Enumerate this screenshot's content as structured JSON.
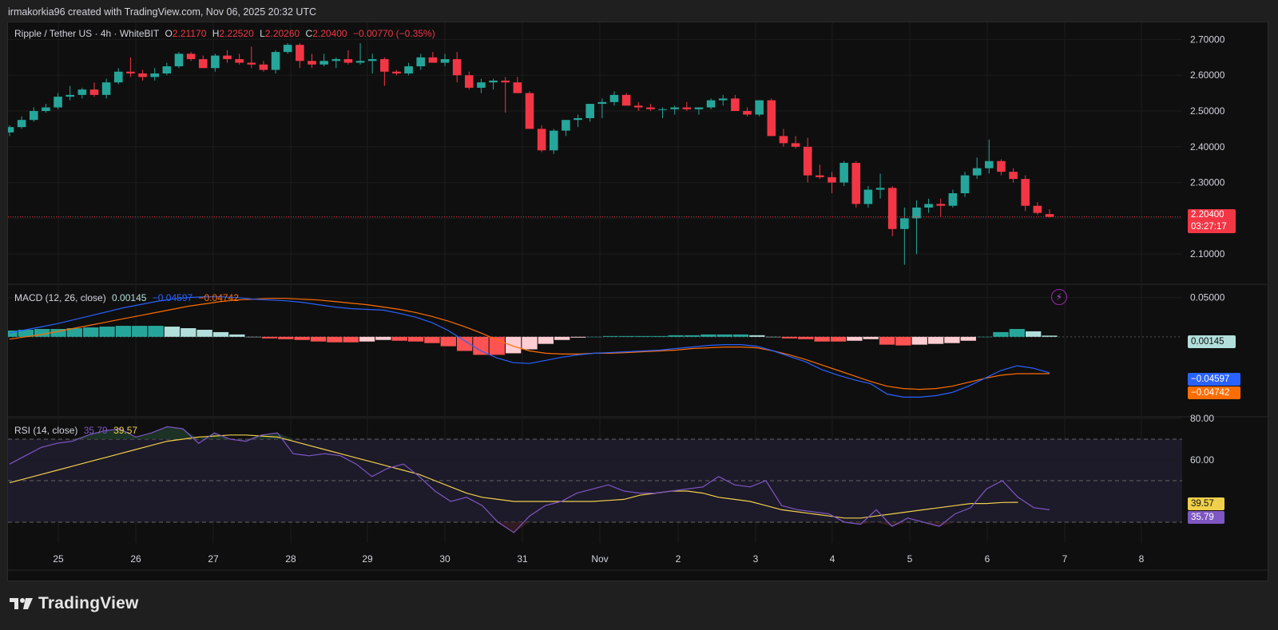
{
  "header": {
    "credit": "irmakorkia96 created with TradingView.com, Nov 06, 2025 20:32 UTC"
  },
  "symbol": {
    "title": "Ripple / Tether US · 4h · WhiteBIT",
    "o_label": "O",
    "o_value": "2.21170",
    "h_label": "H",
    "h_value": "2.22520",
    "l_label": "L",
    "l_value": "2.20260",
    "c_label": "C",
    "c_value": "2.20400",
    "change": "−0.00770 (−0.35%)",
    "last_price": "2.20400",
    "countdown": "03:27:17"
  },
  "colors": {
    "up": "#26a69a",
    "down": "#f23645",
    "macd_line": "#2962ff",
    "signal_line": "#ff6d00",
    "hist_up_strong": "#26a69a",
    "hist_up_weak": "#b2dfdb",
    "hist_down_strong": "#ff5252",
    "hist_down_weak": "#ffcdd2",
    "rsi_line": "#7e57c2",
    "rsi_ma": "#f0d04a",
    "background": "#0f0f0f"
  },
  "macd": {
    "label": "MACD (12, 26, close)",
    "histogram_value": "0.00145",
    "macd_value": "−0.04597",
    "signal_value": "−0.04742"
  },
  "rsi": {
    "label": "RSI (14, close)",
    "rsi_value": "35.79",
    "ma_value": "39.57"
  },
  "footer": {
    "brand": "TradingView"
  },
  "chart_data": [
    {
      "type": "candlestick",
      "title": "Ripple / Tether US · 4h · WhiteBIT",
      "x_ticks": [
        "25",
        "26",
        "27",
        "28",
        "29",
        "30",
        "31",
        "Nov",
        "2",
        "3",
        "4",
        "5",
        "6",
        "7",
        "8"
      ],
      "y_ticks": [
        "2.70000",
        "2.60000",
        "2.50000",
        "2.40000",
        "2.30000",
        "2.20000",
        "2.10000"
      ],
      "ylim": [
        2.02,
        2.73
      ],
      "candles_ohlc": [
        [
          2.44,
          2.46,
          2.43,
          2.455
        ],
        [
          2.455,
          2.485,
          2.45,
          2.475
        ],
        [
          2.475,
          2.51,
          2.47,
          2.5
        ],
        [
          2.5,
          2.52,
          2.495,
          2.51
        ],
        [
          2.51,
          2.55,
          2.505,
          2.54
        ],
        [
          2.54,
          2.57,
          2.53,
          2.545
        ],
        [
          2.545,
          2.565,
          2.535,
          2.56
        ],
        [
          2.56,
          2.58,
          2.54,
          2.545
        ],
        [
          2.545,
          2.59,
          2.535,
          2.58
        ],
        [
          2.58,
          2.62,
          2.575,
          2.61
        ],
        [
          2.61,
          2.65,
          2.595,
          2.605
        ],
        [
          2.605,
          2.615,
          2.585,
          2.595
        ],
        [
          2.595,
          2.62,
          2.585,
          2.605
        ],
        [
          2.605,
          2.635,
          2.6,
          2.625
        ],
        [
          2.625,
          2.665,
          2.62,
          2.66
        ],
        [
          2.66,
          2.665,
          2.64,
          2.645
        ],
        [
          2.645,
          2.655,
          2.625,
          2.62
        ],
        [
          2.62,
          2.66,
          2.61,
          2.655
        ],
        [
          2.655,
          2.67,
          2.635,
          2.645
        ],
        [
          2.645,
          2.66,
          2.63,
          2.635
        ],
        [
          2.635,
          2.68,
          2.62,
          2.63
        ],
        [
          2.63,
          2.64,
          2.61,
          2.615
        ],
        [
          2.615,
          2.67,
          2.605,
          2.665
        ],
        [
          2.665,
          2.69,
          2.66,
          2.685
        ],
        [
          2.685,
          2.69,
          2.62,
          2.64
        ],
        [
          2.64,
          2.66,
          2.62,
          2.63
        ],
        [
          2.63,
          2.66,
          2.625,
          2.64
        ],
        [
          2.64,
          2.65,
          2.62,
          2.645
        ],
        [
          2.645,
          2.67,
          2.63,
          2.635
        ],
        [
          2.635,
          2.69,
          2.63,
          2.64
        ],
        [
          2.64,
          2.66,
          2.605,
          2.645
        ],
        [
          2.645,
          2.65,
          2.57,
          2.61
        ],
        [
          2.61,
          2.615,
          2.6,
          2.605
        ],
        [
          2.605,
          2.635,
          2.6,
          2.625
        ],
        [
          2.625,
          2.66,
          2.615,
          2.65
        ],
        [
          2.65,
          2.665,
          2.64,
          2.635
        ],
        [
          2.635,
          2.66,
          2.625,
          2.645
        ],
        [
          2.645,
          2.665,
          2.58,
          2.6
        ],
        [
          2.6,
          2.61,
          2.56,
          2.565
        ],
        [
          2.565,
          2.59,
          2.55,
          2.58
        ],
        [
          2.58,
          2.59,
          2.56,
          2.585
        ],
        [
          2.585,
          2.595,
          2.495,
          2.58
        ],
        [
          2.58,
          2.595,
          2.55,
          2.55
        ],
        [
          2.55,
          2.555,
          2.45,
          2.45
        ],
        [
          2.45,
          2.46,
          2.385,
          2.39
        ],
        [
          2.39,
          2.45,
          2.38,
          2.445
        ],
        [
          2.445,
          2.475,
          2.43,
          2.475
        ],
        [
          2.475,
          2.49,
          2.455,
          2.48
        ],
        [
          2.48,
          2.52,
          2.47,
          2.52
        ],
        [
          2.52,
          2.535,
          2.48,
          2.525
        ],
        [
          2.525,
          2.555,
          2.515,
          2.545
        ],
        [
          2.545,
          2.55,
          2.52,
          2.515
        ],
        [
          2.515,
          2.525,
          2.5,
          2.51
        ],
        [
          2.51,
          2.52,
          2.5,
          2.505
        ],
        [
          2.505,
          2.51,
          2.48,
          2.505
        ],
        [
          2.505,
          2.515,
          2.49,
          2.51
        ],
        [
          2.51,
          2.525,
          2.5,
          2.505
        ],
        [
          2.505,
          2.51,
          2.49,
          2.51
        ],
        [
          2.51,
          2.535,
          2.505,
          2.53
        ],
        [
          2.53,
          2.545,
          2.515,
          2.535
        ],
        [
          2.535,
          2.545,
          2.5,
          2.5
        ],
        [
          2.5,
          2.51,
          2.485,
          2.49
        ],
        [
          2.49,
          2.53,
          2.485,
          2.53
        ],
        [
          2.53,
          2.535,
          2.43,
          2.43
        ],
        [
          2.43,
          2.45,
          2.4,
          2.41
        ],
        [
          2.41,
          2.43,
          2.395,
          2.4
        ],
        [
          2.4,
          2.425,
          2.3,
          2.32
        ],
        [
          2.32,
          2.35,
          2.31,
          2.315
        ],
        [
          2.315,
          2.33,
          2.27,
          2.3
        ],
        [
          2.3,
          2.36,
          2.29,
          2.355
        ],
        [
          2.355,
          2.36,
          2.23,
          2.24
        ],
        [
          2.24,
          2.29,
          2.23,
          2.28
        ],
        [
          2.28,
          2.325,
          2.255,
          2.285
        ],
        [
          2.285,
          2.29,
          2.15,
          2.17
        ],
        [
          2.17,
          2.23,
          2.07,
          2.2
        ],
        [
          2.2,
          2.25,
          2.1,
          2.23
        ],
        [
          2.23,
          2.255,
          2.215,
          2.24
        ],
        [
          2.24,
          2.255,
          2.205,
          2.235
        ],
        [
          2.235,
          2.28,
          2.23,
          2.27
        ],
        [
          2.27,
          2.33,
          2.26,
          2.32
        ],
        [
          2.32,
          2.37,
          2.31,
          2.34
        ],
        [
          2.34,
          2.42,
          2.325,
          2.36
        ],
        [
          2.36,
          2.365,
          2.32,
          2.33
        ],
        [
          2.33,
          2.34,
          2.3,
          2.31
        ],
        [
          2.31,
          2.32,
          2.22,
          2.235
        ],
        [
          2.235,
          2.245,
          2.21,
          2.215
        ],
        [
          2.2117,
          2.2252,
          2.2026,
          2.204
        ]
      ],
      "last_price": 2.204
    },
    {
      "type": "line",
      "title": "MACD (12, 26, close)",
      "y_ticks": [
        "0.05000"
      ],
      "ylim": [
        -0.1,
        0.065
      ],
      "series": [
        {
          "name": "MACD",
          "values": [
            0.005,
            0.009,
            0.013,
            0.017,
            0.022,
            0.027,
            0.032,
            0.037,
            0.041,
            0.045,
            0.048,
            0.05,
            0.051,
            0.051,
            0.05,
            0.048,
            0.047,
            0.046,
            0.044,
            0.041,
            0.038,
            0.036,
            0.035,
            0.034,
            0.03,
            0.025,
            0.018,
            0.008,
            -0.005,
            -0.018,
            -0.027,
            -0.033,
            -0.034,
            -0.03,
            -0.026,
            -0.023,
            -0.021,
            -0.02,
            -0.019,
            -0.018,
            -0.017,
            -0.015,
            -0.013,
            -0.011,
            -0.01,
            -0.01,
            -0.012,
            -0.018,
            -0.025,
            -0.032,
            -0.042,
            -0.049,
            -0.055,
            -0.06,
            -0.073,
            -0.077,
            -0.077,
            -0.075,
            -0.071,
            -0.063,
            -0.053,
            -0.043,
            -0.037,
            -0.04,
            -0.046
          ]
        },
        {
          "name": "Signal",
          "values": [
            -0.003,
            0.0,
            0.003,
            0.007,
            0.011,
            0.015,
            0.019,
            0.023,
            0.027,
            0.031,
            0.035,
            0.039,
            0.042,
            0.045,
            0.047,
            0.048,
            0.049,
            0.049,
            0.048,
            0.047,
            0.045,
            0.043,
            0.041,
            0.038,
            0.035,
            0.031,
            0.026,
            0.02,
            0.013,
            0.005,
            -0.004,
            -0.012,
            -0.018,
            -0.021,
            -0.022,
            -0.022,
            -0.021,
            -0.021,
            -0.02,
            -0.019,
            -0.018,
            -0.017,
            -0.015,
            -0.014,
            -0.013,
            -0.013,
            -0.014,
            -0.018,
            -0.023,
            -0.029,
            -0.036,
            -0.043,
            -0.05,
            -0.057,
            -0.063,
            -0.066,
            -0.067,
            -0.066,
            -0.063,
            -0.058,
            -0.053,
            -0.049,
            -0.047,
            -0.047,
            -0.047
          ]
        },
        {
          "name": "Histogram",
          "values": [
            0.008,
            0.009,
            0.01,
            0.01,
            0.011,
            0.012,
            0.013,
            0.014,
            0.014,
            0.014,
            0.013,
            0.011,
            0.009,
            0.006,
            0.003,
            0.0,
            -0.002,
            -0.003,
            -0.004,
            -0.006,
            -0.007,
            -0.007,
            -0.006,
            -0.004,
            -0.005,
            -0.006,
            -0.008,
            -0.012,
            -0.018,
            -0.023,
            -0.023,
            -0.021,
            -0.016,
            -0.009,
            -0.004,
            -0.001,
            0.0,
            0.001,
            0.001,
            0.001,
            0.001,
            0.002,
            0.002,
            0.003,
            0.003,
            0.003,
            0.002,
            0.0,
            -0.002,
            -0.003,
            -0.006,
            -0.006,
            -0.005,
            -0.003,
            -0.01,
            -0.011,
            -0.01,
            -0.009,
            -0.008,
            -0.005,
            0.0,
            0.006,
            0.01,
            0.007,
            0.0015
          ]
        }
      ]
    },
    {
      "type": "line",
      "title": "RSI (14, close)",
      "y_ticks": [
        "80.00",
        "60.00"
      ],
      "ylim": [
        20,
        80
      ],
      "bands": [
        70,
        30
      ],
      "series": [
        {
          "name": "RSI",
          "values": [
            58,
            62,
            66,
            68,
            69,
            72,
            74,
            75,
            71,
            73,
            76,
            75,
            68,
            73,
            70,
            69,
            72,
            73,
            63,
            62,
            63,
            62,
            58,
            52,
            56,
            58,
            52,
            45,
            40,
            42,
            38,
            30,
            25,
            33,
            38,
            40,
            44,
            46,
            48,
            45,
            44,
            44,
            45,
            46,
            47,
            52,
            48,
            47,
            50,
            38,
            36,
            35,
            34,
            30,
            29,
            36,
            28,
            32,
            30,
            28,
            34,
            37,
            46,
            50,
            42,
            37,
            36
          ]
        },
        {
          "name": "RSI-based MA",
          "values": [
            49,
            51,
            53,
            55,
            57,
            59,
            61,
            63,
            65,
            67,
            69,
            70,
            71,
            71.5,
            72,
            72,
            71.5,
            71,
            69,
            67,
            65,
            63,
            61,
            59,
            57,
            55,
            53,
            50,
            47,
            44,
            42,
            41,
            40,
            40,
            40,
            40,
            40,
            40,
            40.5,
            41,
            43,
            44,
            45,
            45,
            44,
            42,
            41,
            40,
            38,
            36,
            35,
            34,
            33,
            32,
            32,
            33,
            34,
            35,
            36,
            37,
            38,
            39,
            39,
            39.5,
            39.57
          ]
        }
      ]
    }
  ]
}
